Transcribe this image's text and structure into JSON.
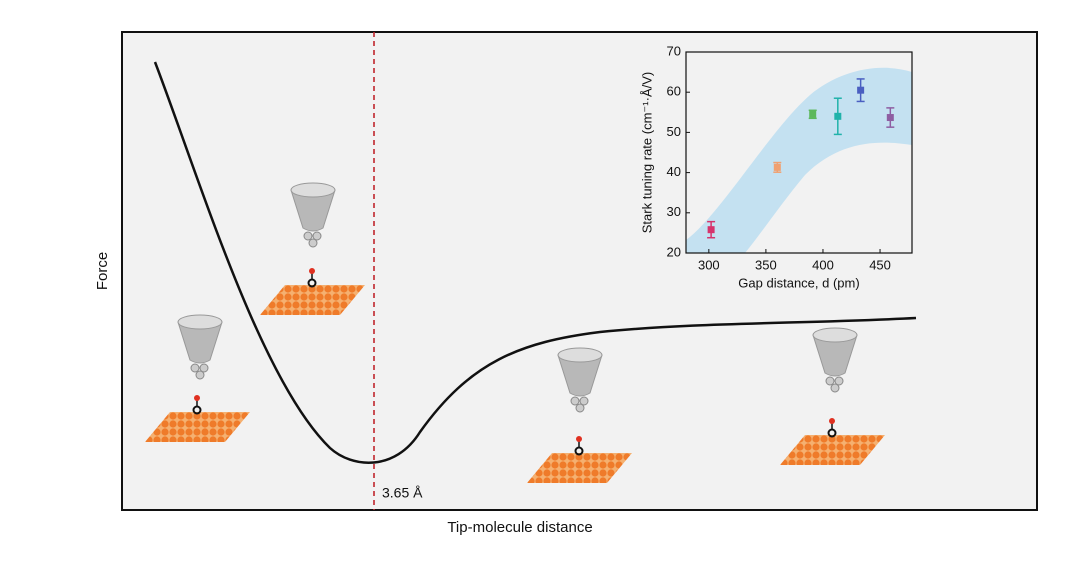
{
  "figure": {
    "y_label": "Force",
    "x_label": "Tip-molecule distance",
    "annotation": "3.65 Å"
  },
  "chart_data": {
    "type": "scatter",
    "x_label": "Gap distance, d (pm)",
    "y_label": "Stark tuning rate (cm⁻¹·Å/V)",
    "x": [
      302,
      360,
      391,
      413,
      433,
      459
    ],
    "values": [
      25.8,
      41.3,
      54.5,
      54,
      60.5,
      53.7
    ],
    "errors": [
      2,
      1.2,
      1,
      4.5,
      2.8,
      2.4
    ],
    "colors": [
      "#d6336c",
      "#f0a070",
      "#5cb85c",
      "#20b2aa",
      "#4a5fc1",
      "#8e5ea2"
    ],
    "xlim": [
      280,
      478
    ],
    "ylim": [
      20,
      70
    ],
    "xticks": [
      300,
      350,
      400,
      450
    ],
    "yticks": [
      20,
      30,
      40,
      50,
      60,
      70
    ]
  }
}
